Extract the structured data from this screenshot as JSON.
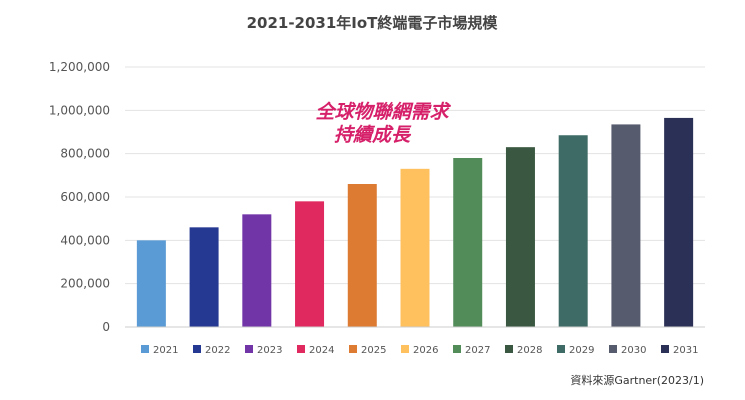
{
  "chart_data": {
    "type": "bar",
    "title": "2021-2031年IoT終端電子市場規模",
    "categories": [
      "2021",
      "2022",
      "2023",
      "2024",
      "2025",
      "2026",
      "2027",
      "2028",
      "2029",
      "2030",
      "2031"
    ],
    "values": [
      400000,
      460000,
      520000,
      580000,
      660000,
      730000,
      780000,
      830000,
      885000,
      935000,
      965000
    ],
    "colors": [
      "#5b9bd5",
      "#253892",
      "#7135a8",
      "#e0295f",
      "#dd7b33",
      "#ffc15e",
      "#528d59",
      "#3a5841",
      "#3f6b66",
      "#575b6e",
      "#2b3156"
    ],
    "ylim": [
      0,
      1200000
    ],
    "yticks": [
      0,
      200000,
      400000,
      600000,
      800000,
      1000000,
      1200000
    ],
    "ytick_labels": [
      "0",
      "200,000",
      "400,000",
      "600,000",
      "800,000",
      "1,000,000",
      "1,200,000"
    ],
    "grid": true,
    "legend_position": "bottom",
    "annotation": [
      "全球物聯網需求",
      "持續成長"
    ],
    "source": "資料來源Gartner(2023/1)"
  }
}
